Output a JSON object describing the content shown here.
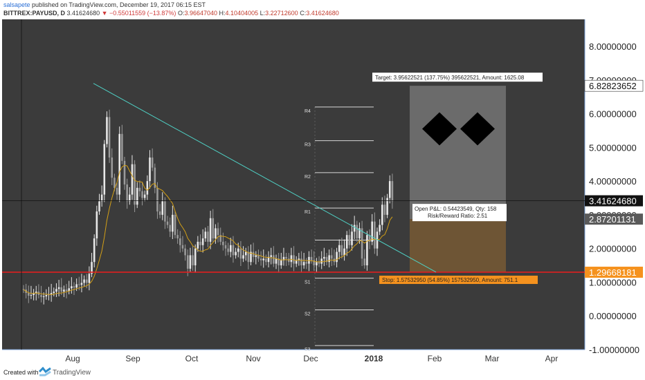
{
  "header": {
    "author": "salsapete",
    "published_text": "published on TradingView.com, December 19, 2017 06:15 EST",
    "symbol": "BITTREX:PAYUSD, D",
    "last": "3.41624680",
    "change": "▼ −0.55011559 (−13.87%)",
    "ohlc": {
      "o_label": "O:",
      "o": "3.96647040",
      "h_label": "H:",
      "h": "4.10404005",
      "l_label": "L:",
      "l": "3.22712600",
      "c_label": "C:",
      "c": "3.41624680"
    }
  },
  "footer": {
    "created_with": "Created with",
    "brand": "TradingView"
  },
  "colors": {
    "background": "#3b3b3b",
    "up": "#e8e8e8",
    "down": "#9a9a9a",
    "ma": "#d4a017",
    "trendline": "#4fd1c5",
    "support": "#e02020",
    "target_zone": "#6b6b6b",
    "stop_zone": "#6e5535",
    "stop_box": "#f5921e"
  },
  "chart_data": {
    "type": "candlestick",
    "symbol": "BITTREX:PAYUSD",
    "interval": "D",
    "x_ticks": [
      "Aug",
      "Sep",
      "Oct",
      "Nov",
      "Dec",
      "2018",
      "Feb",
      "Mar",
      "Apr"
    ],
    "y_ticks": [
      "8.00000000",
      "7.00000000",
      "6.00000000",
      "5.00000000",
      "4.00000000",
      "3.00000000",
      "2.00000000",
      "1.00000000",
      "0.00000000",
      "-1.00000000"
    ],
    "y_range": [
      -1.0,
      8.8
    ],
    "price_labels": {
      "target": "6.82823652",
      "current": "3.41624680",
      "entry": "2.87201131",
      "stop": "1.29668181"
    },
    "pivot_levels": [
      {
        "name": "R4",
        "value": 6.2
      },
      {
        "name": "R3",
        "value": 5.2
      },
      {
        "name": "R2",
        "value": 4.25
      },
      {
        "name": "R1",
        "value": 3.2
      },
      {
        "name": "",
        "value": 2.25
      },
      {
        "name": "S1",
        "value": 1.12
      },
      {
        "name": "S2",
        "value": 0.18
      },
      {
        "name": "S3",
        "value": -0.88
      }
    ],
    "support_level": 1.2967,
    "trendline": [
      {
        "date": "2017-07-12",
        "value": 6.9
      },
      {
        "date": "2018-01-31",
        "value": 1.3
      }
    ],
    "position": {
      "target_text": "Target: 3.95622521 (137.75%) 395622521, Amount: 1625.08",
      "pnl_text": "Open P&L: 0.54423549, Qty: 158",
      "rr_text": "Risk/Reward Ratio: 2.51",
      "stop_text": "Stop: 1.57532950 (54.85%) 157532950, Amount: 751.1"
    },
    "closes": [
      0.78,
      0.68,
      0.6,
      0.62,
      0.68,
      0.72,
      0.62,
      0.56,
      0.58,
      0.62,
      0.64,
      0.68,
      0.72,
      0.8,
      0.85,
      0.72,
      0.78,
      0.74,
      0.82,
      0.88,
      0.84,
      0.94,
      0.92,
      0.98,
      1.08,
      0.98,
      1.25,
      1.6,
      2.3,
      3.1,
      3.4,
      3.6,
      5.1,
      5.9,
      4.7,
      4.1,
      3.8,
      3.6,
      5.4,
      4.6,
      3.9,
      3.4,
      3.6,
      4.5,
      3.3,
      3.8,
      3.7,
      3.5,
      3.6,
      4.0,
      4.7,
      4.4,
      3.8,
      3.1,
      3.0,
      3.4,
      2.8,
      2.7,
      2.5,
      3.0,
      2.4,
      2.3,
      2.1,
      2.0,
      1.8,
      1.4,
      1.8,
      1.5,
      2.0,
      2.2,
      2.1,
      2.3,
      2.5,
      2.2,
      2.9,
      2.3,
      2.6,
      2.4,
      2.2,
      2.1,
      2.0,
      1.9,
      2.1,
      1.8,
      1.9,
      2.0,
      1.7,
      1.8,
      1.9,
      1.6,
      1.9,
      1.75,
      1.8,
      1.7,
      1.65,
      1.7,
      1.6,
      1.75,
      1.8,
      1.55,
      1.7,
      1.5,
      1.65,
      1.75,
      1.7,
      1.6,
      1.8,
      1.55,
      1.65,
      1.7,
      1.5,
      1.6,
      1.55,
      1.75,
      1.65,
      1.5,
      1.6,
      1.55,
      1.7,
      1.75,
      1.6,
      1.8,
      1.7,
      1.6,
      1.9,
      2.1,
      1.8,
      2.0,
      2.4,
      2.1,
      2.5,
      2.7,
      2.3,
      2.6,
      1.7,
      1.5,
      2.4,
      2.2,
      2.8,
      2.0,
      2.5,
      2.7,
      3.3,
      3.0,
      3.5,
      4.0,
      3.4
    ]
  }
}
